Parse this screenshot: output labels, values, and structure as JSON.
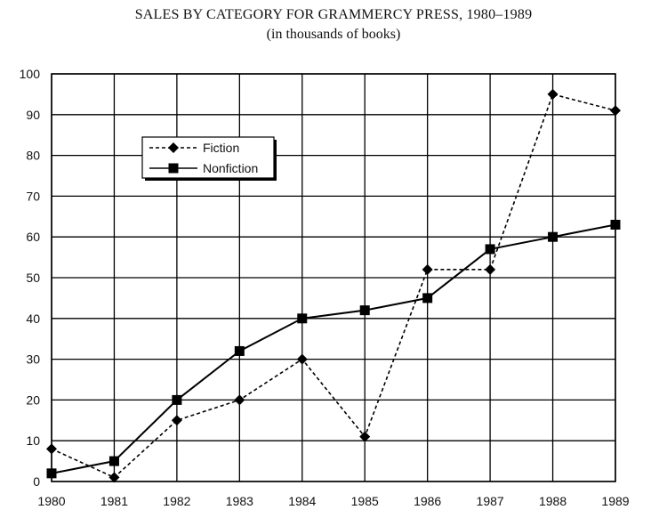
{
  "chart_data": {
    "type": "line",
    "title": "SALES BY CATEGORY FOR GRAMMERCY PRESS, 1980–1989",
    "subtitle": "(in thousands of books)",
    "x": [
      "1980",
      "1981",
      "1982",
      "1983",
      "1984",
      "1985",
      "1986",
      "1987",
      "1988",
      "1989"
    ],
    "ylim": [
      0,
      100
    ],
    "yticks": [
      0,
      10,
      20,
      30,
      40,
      50,
      60,
      70,
      80,
      90,
      100
    ],
    "grid": true,
    "legend_placement": "upper-left",
    "series": [
      {
        "name": "Fiction",
        "style": "dashed",
        "marker": "diamond",
        "color": "#000000",
        "values": [
          8,
          1,
          15,
          20,
          30,
          11,
          52,
          52,
          95,
          91
        ]
      },
      {
        "name": "Nonfiction",
        "style": "solid",
        "marker": "square",
        "color": "#000000",
        "values": [
          2,
          5,
          20,
          32,
          40,
          42,
          45,
          57,
          60,
          63
        ]
      }
    ]
  }
}
